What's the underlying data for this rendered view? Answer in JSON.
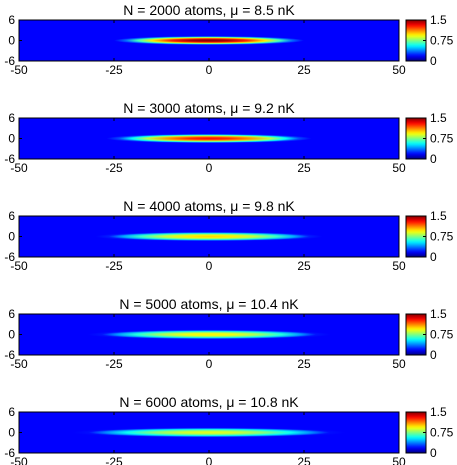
{
  "chart_data": [
    {
      "type": "heatmap",
      "title": "N = 2000 atoms, μ =    8.5 nK",
      "N": 2000,
      "mu_nK": 8.5,
      "xlim": [
        -50,
        50
      ],
      "ylim": [
        -6,
        6
      ],
      "xticks": [
        "-50",
        "-25",
        "0",
        "25",
        "50"
      ],
      "yticks": [
        "6",
        "0",
        "-6"
      ],
      "clim": [
        0,
        1.5
      ],
      "cbar_ticks": [
        "1.5",
        "0.75",
        "0"
      ],
      "peak": 1.5,
      "half_length_x": 25,
      "half_width_y": 1.3
    },
    {
      "type": "heatmap",
      "title": "N = 3000 atoms, μ =    9.2 nK",
      "N": 3000,
      "mu_nK": 9.2,
      "xlim": [
        -50,
        50
      ],
      "ylim": [
        -6,
        6
      ],
      "xticks": [
        "-50",
        "-25",
        "0",
        "25",
        "50"
      ],
      "yticks": [
        "6",
        "0",
        "-6"
      ],
      "clim": [
        0,
        1.5
      ],
      "cbar_ticks": [
        "1.5",
        "0.75",
        "0"
      ],
      "peak": 1.3,
      "half_length_x": 27,
      "half_width_y": 1.35
    },
    {
      "type": "heatmap",
      "title": "N = 4000 atoms, μ =    9.8 nK",
      "N": 4000,
      "mu_nK": 9.8,
      "xlim": [
        -50,
        50
      ],
      "ylim": [
        -6,
        6
      ],
      "xticks": [
        "-50",
        "-25",
        "0",
        "25",
        "50"
      ],
      "yticks": [
        "6",
        "0",
        "-6"
      ],
      "clim": [
        0,
        1.5
      ],
      "cbar_ticks": [
        "1.5",
        "0.75",
        "0"
      ],
      "peak": 1.0,
      "half_length_x": 30,
      "half_width_y": 1.4
    },
    {
      "type": "heatmap",
      "title": "N = 5000 atoms, μ = 10.4 nK",
      "N": 5000,
      "mu_nK": 10.4,
      "xlim": [
        -50,
        50
      ],
      "ylim": [
        -6,
        6
      ],
      "xticks": [
        "-50",
        "-25",
        "0",
        "25",
        "50"
      ],
      "yticks": [
        "6",
        "0",
        "-6"
      ],
      "clim": [
        0,
        1.5
      ],
      "cbar_ticks": [
        "1.5",
        "0.75",
        "0"
      ],
      "peak": 0.95,
      "half_length_x": 32,
      "half_width_y": 1.45
    },
    {
      "type": "heatmap",
      "title": "N = 6000 atoms, μ = 10.8 nK",
      "N": 6000,
      "mu_nK": 10.8,
      "xlim": [
        -50,
        50
      ],
      "ylim": [
        -6,
        6
      ],
      "xticks": [
        "-50",
        "-25",
        "0",
        "25",
        "50"
      ],
      "yticks": [
        "6",
        "0",
        "-6"
      ],
      "clim": [
        0,
        1.5
      ],
      "cbar_ticks": [
        "1.5",
        "0.75",
        "0"
      ],
      "peak": 0.9,
      "half_length_x": 36,
      "half_width_y": 1.5
    }
  ]
}
